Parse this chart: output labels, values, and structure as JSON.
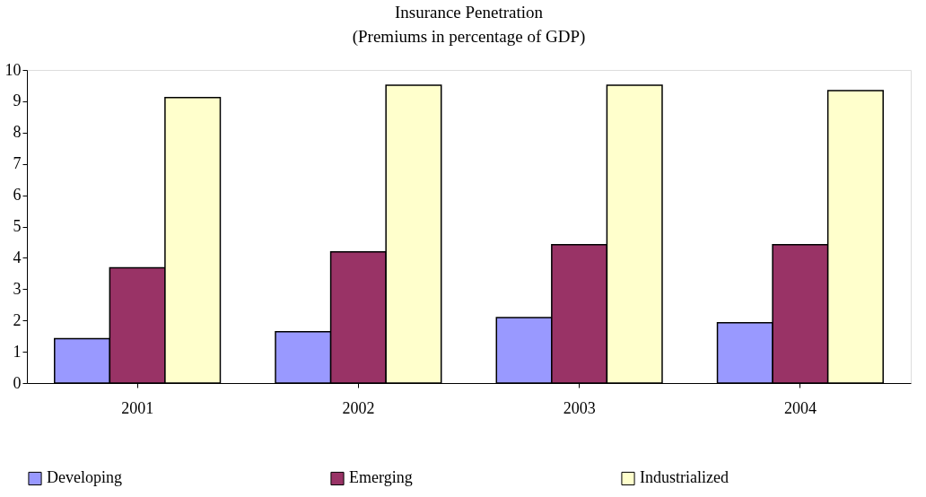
{
  "chart_data": {
    "type": "bar",
    "title": "Insurance Penetration",
    "subtitle": "(Premiums in percentage of GDP)",
    "categories": [
      "2001",
      "2002",
      "2003",
      "2004"
    ],
    "series": [
      {
        "name": "Developing",
        "color": "#9999ff",
        "values": [
          1.42,
          1.64,
          2.09,
          1.93
        ]
      },
      {
        "name": "Emerging",
        "color": "#993366",
        "values": [
          3.68,
          4.19,
          4.42,
          4.42
        ]
      },
      {
        "name": "Industrialized",
        "color": "#ffffcc",
        "values": [
          9.12,
          9.51,
          9.51,
          9.34
        ]
      }
    ],
    "ylim": [
      0,
      10
    ],
    "yticks": [
      0,
      1,
      2,
      3,
      4,
      5,
      6,
      7,
      8,
      9,
      10
    ],
    "grid": false,
    "legend": "bottom"
  }
}
